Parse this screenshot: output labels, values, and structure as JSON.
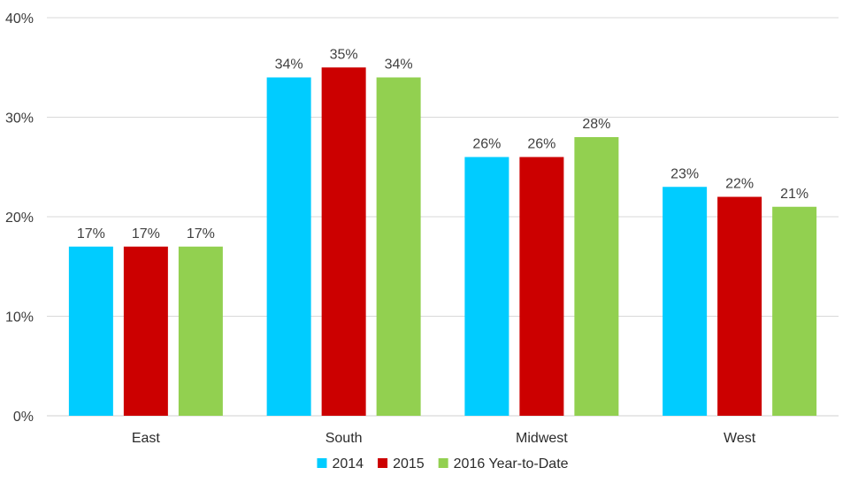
{
  "chart_data": {
    "type": "bar",
    "title": "",
    "xlabel": "",
    "ylabel": "",
    "categories": [
      "East",
      "South",
      "Midwest",
      "West"
    ],
    "series": [
      {
        "name": "2014",
        "color": "#00CCFF",
        "values": [
          17,
          34,
          26,
          23
        ]
      },
      {
        "name": "2015",
        "color": "#CC0000",
        "values": [
          17,
          35,
          26,
          22
        ]
      },
      {
        "name": "2016 Year-to-Date",
        "color": "#92D050",
        "values": [
          17,
          34,
          28,
          21
        ]
      }
    ],
    "ylim": [
      0,
      40
    ],
    "yticks": [
      0,
      10,
      20,
      30,
      40
    ],
    "ytick_labels": [
      "0%",
      "10%",
      "20%",
      "30%",
      "40%"
    ],
    "value_suffix": "%",
    "grid": "horizontal",
    "legend_position": "bottom"
  }
}
